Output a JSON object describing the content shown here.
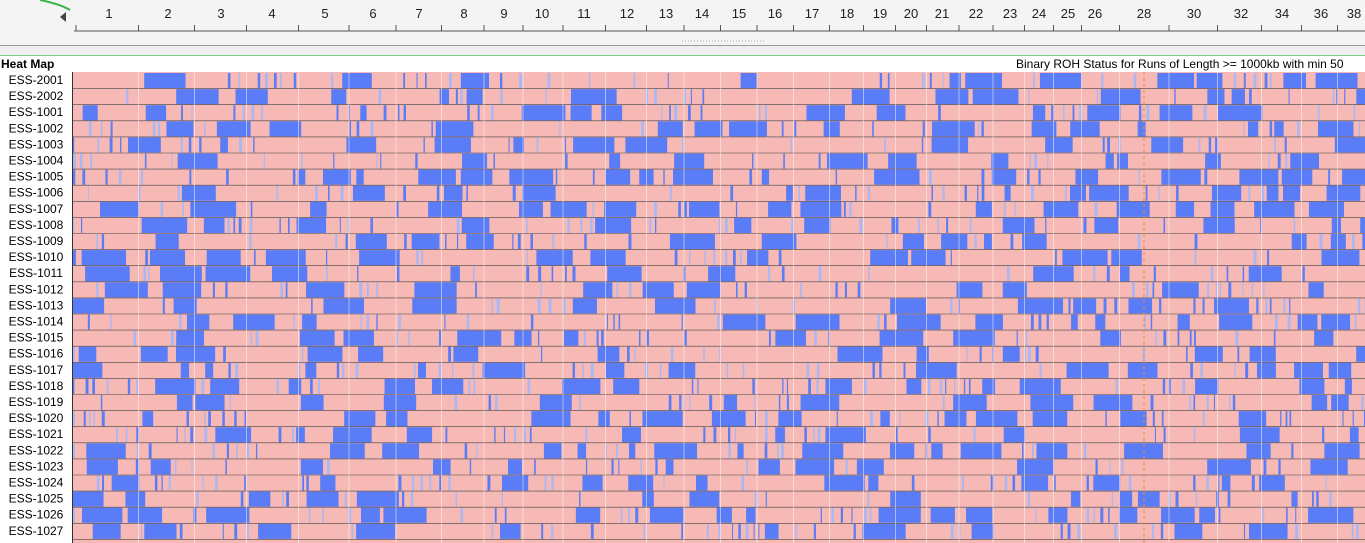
{
  "ruler": {
    "labels": [
      "1",
      "2",
      "3",
      "4",
      "5",
      "6",
      "7",
      "8",
      "9",
      "10",
      "11",
      "12",
      "13",
      "14",
      "15",
      "16",
      "17",
      "18",
      "19",
      "20",
      "21",
      "22",
      "23",
      "24",
      "25",
      "26",
      "28",
      "30",
      "32",
      "34",
      "36",
      "38"
    ]
  },
  "panel": {
    "title": "Heat Map",
    "subtitle": "Binary ROH Status for Runs of Length >= 1000kb with min 50"
  },
  "rows": [
    "ESS-2001",
    "ESS-2002",
    "ESS-1001",
    "ESS-1002",
    "ESS-1003",
    "ESS-1004",
    "ESS-1005",
    "ESS-1006",
    "ESS-1007",
    "ESS-1008",
    "ESS-1009",
    "ESS-1010",
    "ESS-1011",
    "ESS-1012",
    "ESS-1013",
    "ESS-1014",
    "ESS-1015",
    "ESS-1016",
    "ESS-1017",
    "ESS-1018",
    "ESS-1019",
    "ESS-1020",
    "ESS-1021",
    "ESS-1022",
    "ESS-1023",
    "ESS-1024",
    "ESS-1025",
    "ESS-1026",
    "ESS-1027"
  ]
}
